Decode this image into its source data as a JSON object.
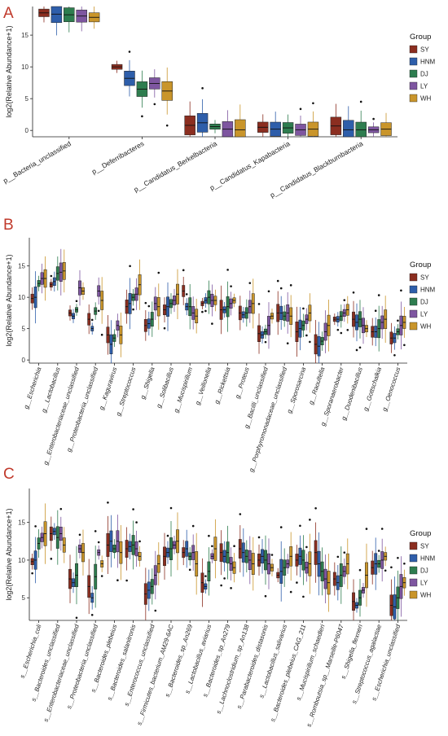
{
  "legend": {
    "title": "Group",
    "groups": [
      "SY",
      "HNM",
      "DJ",
      "LY",
      "WH"
    ],
    "colors": [
      "#8B2E20",
      "#2E5EAA",
      "#2E7D4F",
      "#7E56A0",
      "#C9952B"
    ]
  },
  "chart_data": [
    {
      "panel": "A",
      "type": "box",
      "ylabel": "log2(Relative Abundance+1)",
      "ylim": [
        -1,
        19.5
      ],
      "yticks": [
        0,
        5,
        10,
        15
      ],
      "categories": [
        "p__Bacteria_unclassified",
        "p__Deferribacteres",
        "p__Candidatus_Berkelbacteria",
        "p__Candidatus_Kapabacteria",
        "p__Candidatus_Blackburnbacteria"
      ],
      "medians": [
        [
          18.5,
          18.3,
          18.2,
          18.0,
          17.8
        ],
        [
          10.0,
          8.2,
          6.5,
          7.4,
          6.2
        ],
        [
          0.8,
          1.2,
          0.6,
          0.2,
          0.1
        ],
        [
          0.5,
          0.2,
          0.4,
          0.1,
          0.2
        ],
        [
          0.7,
          0.1,
          0.1,
          0.1,
          0.2
        ]
      ]
    },
    {
      "panel": "B",
      "type": "box",
      "ylabel": "log2(Relative Abundance+1)",
      "ylim": [
        -0.5,
        19.5
      ],
      "yticks": [
        0,
        5,
        10,
        15
      ],
      "categories": [
        "g__Escherichia",
        "g__Lactobacillus",
        "g__Enterobacteriaceae_unclassified",
        "g__Proteobacteria_unclassified",
        "g__Kaguravirus",
        "g__Streptococcus",
        "g__Shigella",
        "g__Solibacillus",
        "g__Mucispirillum",
        "g__Veillonella",
        "g__Rickettsia",
        "g__Proteus",
        "g__Bacilli_unclassified",
        "g__Porphyromonadaceae_unclassified",
        "g__Sporosarcina",
        "g__Raoultella",
        "g__Sporanaerobacter",
        "g__Duodenibacillus",
        "g__Gottschalkia",
        "g__Oenococcus"
      ],
      "medians": [
        [
          9.8,
          10.0,
          12.2,
          13.0,
          13.0
        ],
        [
          12.0,
          12.5,
          13.8,
          14.0,
          14.2
        ],
        [
          7.5,
          7.0,
          8.0,
          11.5,
          11.0
        ],
        [
          6.5,
          5.0,
          7.8,
          11.0,
          9.5
        ],
        [
          4.0,
          2.5,
          3.5,
          5.5,
          4.0
        ],
        [
          8.5,
          9.0,
          10.0,
          10.5,
          12.0
        ],
        [
          5.5,
          5.8,
          6.5,
          9.0,
          8.5
        ],
        [
          8.0,
          8.5,
          9.0,
          9.5,
          10.5
        ],
        [
          11.0,
          8.5,
          8.5,
          7.5,
          7.0
        ],
        [
          9.0,
          9.5,
          10.0,
          9.5,
          9.5
        ],
        [
          8.0,
          8.0,
          8.5,
          9.0,
          9.5
        ],
        [
          7.5,
          7.2,
          7.5,
          8.5,
          9.0
        ],
        [
          4.2,
          4.0,
          4.5,
          5.5,
          7.0
        ],
        [
          7.5,
          7.5,
          7.0,
          7.5,
          7.0
        ],
        [
          4.5,
          5.0,
          5.5,
          6.5,
          7.5
        ],
        [
          2.5,
          2.2,
          3.0,
          4.5,
          5.5
        ],
        [
          6.5,
          6.5,
          7.0,
          7.5,
          8.0
        ],
        [
          6.5,
          6.0,
          6.5,
          5.5,
          5.0
        ],
        [
          4.5,
          4.5,
          5.0,
          6.0,
          6.5
        ],
        [
          3.5,
          3.5,
          4.5,
          5.5,
          6.0
        ]
      ]
    },
    {
      "panel": "C",
      "type": "box",
      "ylabel": "log2(Relative Abundance+1)",
      "ylim": [
        2,
        19.5
      ],
      "yticks": [
        5,
        10,
        15
      ],
      "categories": [
        "s__Escherichia_coli",
        "s__Bacteroides_unclassified",
        "s__Enterobacteriaceae_unclassified",
        "s__Proteobacteria_unclassified",
        "s__Bacteroides_plebeius",
        "s__Bacteroides_salanitronis",
        "s__Enterococcus_unclassified",
        "s__Firmicutes_bacterium_AM29-6AC",
        "s__Bacteroides_sp_An269",
        "s__Lactobacillus_aviarius",
        "s__Bacteroides_sp_An279",
        "s__Lachnoclostridium_sp_An138",
        "s__Parabacteroides_distasonis",
        "s__Lactobacillus_salivarius",
        "s__Bacteroides_plebeius_CAG_211",
        "s__Mucispirillum_schaedleri",
        "s__Romboutsia_sp__Marseille-P6047",
        "s__Shigella_flexneri",
        "s__Streptococcus_agalactiae",
        "s__Escherichia_unclassified"
      ],
      "medians": [
        [
          9.8,
          10.0,
          12.2,
          13.0,
          13.5
        ],
        [
          13.5,
          13.8,
          13.0,
          13.5,
          12.0
        ],
        [
          7.5,
          7.0,
          8.0,
          11.5,
          11.0
        ],
        [
          6.5,
          5.0,
          7.8,
          11.0,
          9.5
        ],
        [
          12.0,
          12.5,
          11.5,
          12.5,
          11.0
        ],
        [
          11.5,
          11.8,
          12.0,
          11.5,
          10.5
        ],
        [
          5.5,
          6.0,
          6.5,
          8.0,
          9.5
        ],
        [
          10.5,
          11.0,
          11.5,
          12.0,
          12.5
        ],
        [
          11.0,
          11.5,
          10.5,
          11.0,
          9.5
        ],
        [
          7.0,
          6.5,
          8.5,
          10.5,
          11.5
        ],
        [
          11.0,
          10.5,
          11.0,
          9.5,
          9.0
        ],
        [
          11.5,
          11.0,
          10.5,
          10.0,
          9.5
        ],
        [
          10.0,
          10.5,
          10.0,
          9.5,
          9.0
        ],
        [
          8.0,
          8.5,
          9.0,
          9.5,
          10.5
        ],
        [
          10.0,
          10.5,
          10.0,
          9.0,
          9.5
        ],
        [
          11.0,
          9.5,
          8.5,
          7.5,
          7.0
        ],
        [
          7.5,
          7.0,
          8.0,
          8.5,
          9.5
        ],
        [
          4.5,
          4.0,
          5.0,
          6.0,
          8.0
        ],
        [
          9.0,
          9.5,
          9.5,
          10.0,
          10.5
        ],
        [
          4.0,
          3.8,
          5.0,
          6.5,
          7.0
        ]
      ]
    }
  ]
}
